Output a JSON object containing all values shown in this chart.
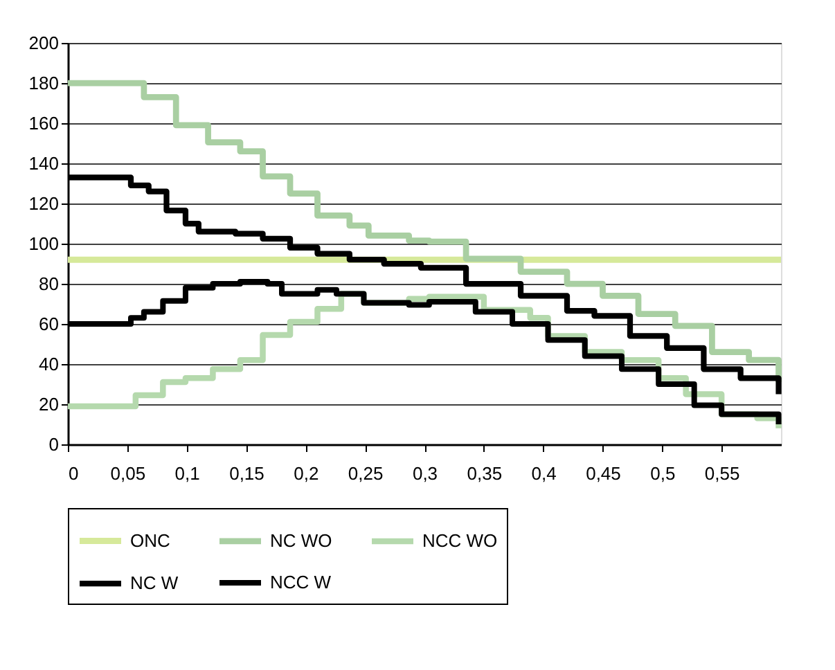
{
  "chart_data": {
    "type": "step",
    "xlim": [
      0,
      0.6
    ],
    "ylim": [
      0,
      200
    ],
    "xticks": [
      0,
      {
        "value": 0.05,
        "label": "0,05"
      },
      {
        "value": 0.1,
        "label": "0,1"
      },
      {
        "value": 0.15,
        "label": "0,15"
      },
      {
        "value": 0.2,
        "label": "0,2"
      },
      {
        "value": 0.25,
        "label": "0,25"
      },
      {
        "value": 0.3,
        "label": "0,3"
      },
      {
        "value": 0.35,
        "label": "0,35"
      },
      {
        "value": 0.4,
        "label": "0,4"
      },
      {
        "value": 0.45,
        "label": "0,45"
      },
      {
        "value": 0.5,
        "label": "0,5"
      },
      {
        "value": 0.55,
        "label": "0,55"
      }
    ],
    "yticks": [
      0,
      20,
      40,
      60,
      80,
      100,
      120,
      140,
      160,
      180,
      200
    ],
    "grid": "y",
    "legend": "bottom",
    "marker": "none",
    "line_style": "solid",
    "series": [
      {
        "name": "ONC",
        "color": "#d6e99a",
        "x": [
          0,
          0.6
        ],
        "values": [
          92,
          92
        ]
      },
      {
        "name": "NC WO",
        "color": "#a9cfa2",
        "x": [
          0,
          0.049,
          0.064,
          0.091,
          0.118,
          0.145,
          0.164,
          0.187,
          0.21,
          0.237,
          0.253,
          0.287,
          0.304,
          0.335,
          0.381,
          0.42,
          0.45,
          0.48,
          0.511,
          0.542,
          0.573,
          0.598
        ],
        "values": [
          180,
          180,
          173,
          159,
          150.5,
          146,
          133.5,
          125,
          114,
          109,
          104,
          101.5,
          101,
          92.5,
          86,
          80,
          74,
          65,
          59,
          46,
          42,
          31
        ]
      },
      {
        "name": "NCC WO",
        "color": "#b5d9ad",
        "x": [
          0,
          0.049,
          0.057,
          0.08,
          0.099,
          0.122,
          0.145,
          0.164,
          0.187,
          0.21,
          0.23,
          0.249,
          0.287,
          0.304,
          0.35,
          0.389,
          0.404,
          0.435,
          0.466,
          0.497,
          0.52,
          0.55,
          0.58,
          0.598
        ],
        "values": [
          19,
          19,
          24.5,
          31,
          33,
          37.5,
          42,
          54.5,
          61,
          67.5,
          75,
          70.5,
          72.5,
          73.5,
          67,
          63,
          54,
          46,
          42,
          33,
          25,
          15,
          13,
          8
        ]
      },
      {
        "name": "NC W",
        "color": "#000000",
        "x": [
          0,
          0.037,
          0.053,
          0.068,
          0.083,
          0.099,
          0.11,
          0.141,
          0.164,
          0.187,
          0.21,
          0.237,
          0.266,
          0.297,
          0.335,
          0.381,
          0.42,
          0.443,
          0.473,
          0.504,
          0.535,
          0.566,
          0.598
        ],
        "values": [
          133,
          133,
          129,
          126,
          116.5,
          110,
          106,
          105,
          102.5,
          98,
          95,
          92,
          90,
          88,
          80,
          74,
          66.5,
          64,
          54,
          48,
          37.5,
          33,
          25
        ]
      },
      {
        "name": "NCC W",
        "color": "#000000",
        "x": [
          0,
          0.041,
          0.053,
          0.064,
          0.08,
          0.099,
          0.122,
          0.145,
          0.168,
          0.18,
          0.21,
          0.226,
          0.249,
          0.287,
          0.304,
          0.343,
          0.374,
          0.404,
          0.435,
          0.466,
          0.497,
          0.527,
          0.55,
          0.598
        ],
        "values": [
          60,
          60,
          63,
          66,
          71.5,
          78,
          80,
          81,
          80,
          75,
          77,
          75,
          70.5,
          69.5,
          71,
          66,
          60,
          52,
          44,
          37.5,
          30,
          19.5,
          15,
          10
        ]
      }
    ]
  }
}
